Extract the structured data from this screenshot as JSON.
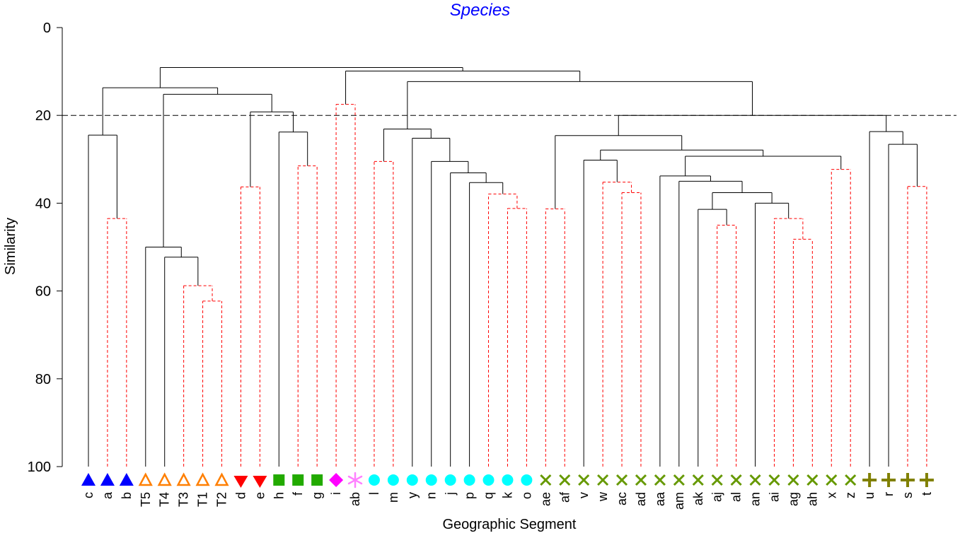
{
  "chart_data": {
    "type": "dendrogram",
    "title": "Species",
    "xlabel": "Geographic Segment",
    "ylabel": "Similarity",
    "ylim": [
      0,
      100
    ],
    "y_axis_inverted": true,
    "yticks": [
      0,
      20,
      40,
      60,
      80,
      100
    ],
    "reference_line": {
      "similarity": 20,
      "style": "dashed"
    },
    "leaves": [
      {
        "label": "c",
        "marker": "triangle-up",
        "color": "#0000ff"
      },
      {
        "label": "a",
        "marker": "triangle-up",
        "color": "#0000ff"
      },
      {
        "label": "b",
        "marker": "triangle-up",
        "color": "#0000ff"
      },
      {
        "label": "T5",
        "marker": "triangle-up-open",
        "color": "#ff7f00"
      },
      {
        "label": "T4",
        "marker": "triangle-up-open",
        "color": "#ff7f00"
      },
      {
        "label": "T3",
        "marker": "triangle-up-open",
        "color": "#ff7f00"
      },
      {
        "label": "T1",
        "marker": "triangle-up-open",
        "color": "#ff7f00"
      },
      {
        "label": "T2",
        "marker": "triangle-up-open",
        "color": "#ff7f00"
      },
      {
        "label": "d",
        "marker": "triangle-down",
        "color": "#ff0000"
      },
      {
        "label": "e",
        "marker": "triangle-down",
        "color": "#ff0000"
      },
      {
        "label": "h",
        "marker": "square",
        "color": "#22aa00"
      },
      {
        "label": "f",
        "marker": "square",
        "color": "#22aa00"
      },
      {
        "label": "g",
        "marker": "square",
        "color": "#22aa00"
      },
      {
        "label": "i",
        "marker": "diamond",
        "color": "#ff00ff"
      },
      {
        "label": "ab",
        "marker": "asterisk",
        "color": "#ff80ff"
      },
      {
        "label": "l",
        "marker": "circle",
        "color": "#00ffff"
      },
      {
        "label": "m",
        "marker": "circle",
        "color": "#00ffff"
      },
      {
        "label": "y",
        "marker": "circle",
        "color": "#00ffff"
      },
      {
        "label": "n",
        "marker": "circle",
        "color": "#00ffff"
      },
      {
        "label": "j",
        "marker": "circle",
        "color": "#00ffff"
      },
      {
        "label": "p",
        "marker": "circle",
        "color": "#00ffff"
      },
      {
        "label": "q",
        "marker": "circle",
        "color": "#00ffff"
      },
      {
        "label": "k",
        "marker": "circle",
        "color": "#00ffff"
      },
      {
        "label": "o",
        "marker": "circle",
        "color": "#00ffff"
      },
      {
        "label": "ae",
        "marker": "x",
        "color": "#669900"
      },
      {
        "label": "af",
        "marker": "x",
        "color": "#669900"
      },
      {
        "label": "v",
        "marker": "x",
        "color": "#669900"
      },
      {
        "label": "w",
        "marker": "x",
        "color": "#669900"
      },
      {
        "label": "ac",
        "marker": "x",
        "color": "#669900"
      },
      {
        "label": "ad",
        "marker": "x",
        "color": "#669900"
      },
      {
        "label": "aa",
        "marker": "x",
        "color": "#669900"
      },
      {
        "label": "am",
        "marker": "x",
        "color": "#669900"
      },
      {
        "label": "ak",
        "marker": "x",
        "color": "#669900"
      },
      {
        "label": "aj",
        "marker": "x",
        "color": "#669900"
      },
      {
        "label": "al",
        "marker": "x",
        "color": "#669900"
      },
      {
        "label": "an",
        "marker": "x",
        "color": "#669900"
      },
      {
        "label": "ai",
        "marker": "x",
        "color": "#669900"
      },
      {
        "label": "ag",
        "marker": "x",
        "color": "#669900"
      },
      {
        "label": "ah",
        "marker": "x",
        "color": "#669900"
      },
      {
        "label": "x",
        "marker": "x",
        "color": "#669900"
      },
      {
        "label": "z",
        "marker": "x",
        "color": "#669900"
      },
      {
        "label": "u",
        "marker": "plus",
        "color": "#808000"
      },
      {
        "label": "r",
        "marker": "plus",
        "color": "#808000"
      },
      {
        "label": "s",
        "marker": "plus",
        "color": "#808000"
      },
      {
        "label": "t",
        "marker": "plus",
        "color": "#808000"
      }
    ],
    "merges": [
      {
        "id": "N1",
        "children": [
          "a",
          "b"
        ],
        "similarity": 43.5,
        "significant": false
      },
      {
        "id": "N2",
        "children": [
          "c",
          "N1"
        ],
        "similarity": 24.5,
        "significant": true
      },
      {
        "id": "N3",
        "children": [
          "T1",
          "T2"
        ],
        "similarity": 62.3,
        "significant": false
      },
      {
        "id": "N4",
        "children": [
          "T3",
          "N3"
        ],
        "similarity": 58.8,
        "significant": false
      },
      {
        "id": "N5",
        "children": [
          "T4",
          "N4"
        ],
        "similarity": 52.3,
        "significant": true
      },
      {
        "id": "N6",
        "children": [
          "T5",
          "N5"
        ],
        "similarity": 50.0,
        "significant": true
      },
      {
        "id": "N7",
        "children": [
          "d",
          "e"
        ],
        "similarity": 36.3,
        "significant": false
      },
      {
        "id": "N8",
        "children": [
          "f",
          "g"
        ],
        "similarity": 31.5,
        "significant": false
      },
      {
        "id": "N9",
        "children": [
          "h",
          "N8"
        ],
        "similarity": 23.8,
        "significant": true
      },
      {
        "id": "N10",
        "children": [
          "N7",
          "N9"
        ],
        "similarity": 19.2,
        "significant": true
      },
      {
        "id": "N11",
        "children": [
          "N6",
          "N10"
        ],
        "similarity": 15.2,
        "significant": true
      },
      {
        "id": "N12",
        "children": [
          "N2",
          "N11"
        ],
        "similarity": 13.7,
        "significant": true
      },
      {
        "id": "N13",
        "children": [
          "i",
          "ab"
        ],
        "similarity": 17.5,
        "significant": false
      },
      {
        "id": "N14",
        "children": [
          "l",
          "m"
        ],
        "similarity": 30.5,
        "significant": false
      },
      {
        "id": "N15",
        "children": [
          "k",
          "o"
        ],
        "similarity": 41.2,
        "significant": false
      },
      {
        "id": "N16",
        "children": [
          "q",
          "N15"
        ],
        "similarity": 37.9,
        "significant": false
      },
      {
        "id": "N17",
        "children": [
          "p",
          "N16"
        ],
        "similarity": 35.3,
        "significant": true
      },
      {
        "id": "N18",
        "children": [
          "j",
          "N17"
        ],
        "similarity": 33.1,
        "significant": true
      },
      {
        "id": "N19",
        "children": [
          "n",
          "N18"
        ],
        "similarity": 30.5,
        "significant": true
      },
      {
        "id": "N20",
        "children": [
          "y",
          "N19"
        ],
        "similarity": 25.2,
        "significant": true
      },
      {
        "id": "N21",
        "children": [
          "N14",
          "N20"
        ],
        "similarity": 23.1,
        "significant": true
      },
      {
        "id": "N22",
        "children": [
          "ae",
          "af"
        ],
        "similarity": 41.3,
        "significant": false
      },
      {
        "id": "N23",
        "children": [
          "ac",
          "ad"
        ],
        "similarity": 37.6,
        "significant": false
      },
      {
        "id": "N24",
        "children": [
          "w",
          "N23"
        ],
        "similarity": 35.2,
        "significant": false
      },
      {
        "id": "N25",
        "children": [
          "v",
          "N24"
        ],
        "similarity": 30.2,
        "significant": true
      },
      {
        "id": "N26",
        "children": [
          "aj",
          "al"
        ],
        "similarity": 45.0,
        "significant": false
      },
      {
        "id": "N27",
        "children": [
          "ak",
          "N26"
        ],
        "similarity": 41.4,
        "significant": true
      },
      {
        "id": "N28",
        "children": [
          "ag",
          "ah"
        ],
        "similarity": 48.2,
        "significant": false
      },
      {
        "id": "N29",
        "children": [
          "ai",
          "N28"
        ],
        "similarity": 43.5,
        "significant": false
      },
      {
        "id": "N30",
        "children": [
          "an",
          "N29"
        ],
        "similarity": 40.0,
        "significant": true
      },
      {
        "id": "N31",
        "children": [
          "N27",
          "N30"
        ],
        "similarity": 37.6,
        "significant": true
      },
      {
        "id": "N32",
        "children": [
          "am",
          "N31"
        ],
        "similarity": 35.0,
        "significant": true
      },
      {
        "id": "N33",
        "children": [
          "aa",
          "N32"
        ],
        "similarity": 33.8,
        "significant": true
      },
      {
        "id": "N34",
        "children": [
          "x",
          "z"
        ],
        "similarity": 32.3,
        "significant": false
      },
      {
        "id": "N35",
        "children": [
          "N33",
          "N34"
        ],
        "similarity": 29.3,
        "significant": true
      },
      {
        "id": "N36",
        "children": [
          "N25",
          "N35"
        ],
        "similarity": 27.9,
        "significant": true
      },
      {
        "id": "N37",
        "children": [
          "N22",
          "N36"
        ],
        "similarity": 24.6,
        "significant": true
      },
      {
        "id": "N38",
        "children": [
          "s",
          "t"
        ],
        "similarity": 36.2,
        "significant": false
      },
      {
        "id": "N39",
        "children": [
          "r",
          "N38"
        ],
        "similarity": 26.6,
        "significant": true
      },
      {
        "id": "N40",
        "children": [
          "u",
          "N39"
        ],
        "similarity": 23.7,
        "significant": true
      },
      {
        "id": "N41",
        "children": [
          "N37",
          "N40"
        ],
        "similarity": 20.0,
        "significant": true
      },
      {
        "id": "N42",
        "children": [
          "N21",
          "N41"
        ],
        "similarity": 12.3,
        "significant": true
      },
      {
        "id": "N43",
        "children": [
          "N13",
          "N42"
        ],
        "similarity": 9.9,
        "significant": true
      },
      {
        "id": "N44",
        "children": [
          "N12",
          "N43"
        ],
        "similarity": 9.1,
        "significant": true
      }
    ],
    "colors": {
      "title": "#0000ff",
      "significant_branch": "#000000",
      "nonsignificant_branch": "#ff0000"
    }
  }
}
